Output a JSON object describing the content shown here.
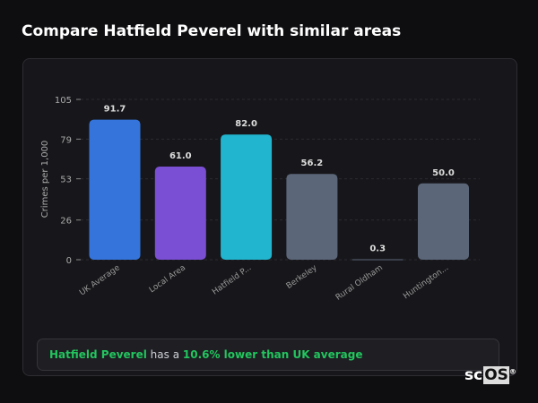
{
  "title": "Compare Hatfield Peverel with similar areas",
  "chart_data": {
    "type": "bar",
    "categories": [
      "UK Average",
      "Local Area",
      "Hatfield P...",
      "Berkeley",
      "Rural Oldham",
      "Huntington..."
    ],
    "values": [
      91.7,
      61.0,
      82.0,
      56.2,
      0.3,
      50.0
    ],
    "value_labels": [
      "91.7",
      "61.0",
      "82.0",
      "56.2",
      "0.3",
      "50.0"
    ],
    "colors": [
      "#3574db",
      "#7b4fd4",
      "#22b5cf",
      "#5b6679",
      "#5b6679",
      "#5b6679"
    ],
    "ylabel": "Crimes per 1,000",
    "yticks": [
      0,
      26,
      53,
      79,
      105
    ],
    "ylim": [
      0,
      105
    ],
    "grid": true
  },
  "summary": {
    "place": "Hatfield Peverel",
    "middle": " has a ",
    "highlight": "10.6% lower than UK average"
  },
  "logo": {
    "text_a": "sc",
    "text_b": "OS",
    "mark": "®"
  }
}
